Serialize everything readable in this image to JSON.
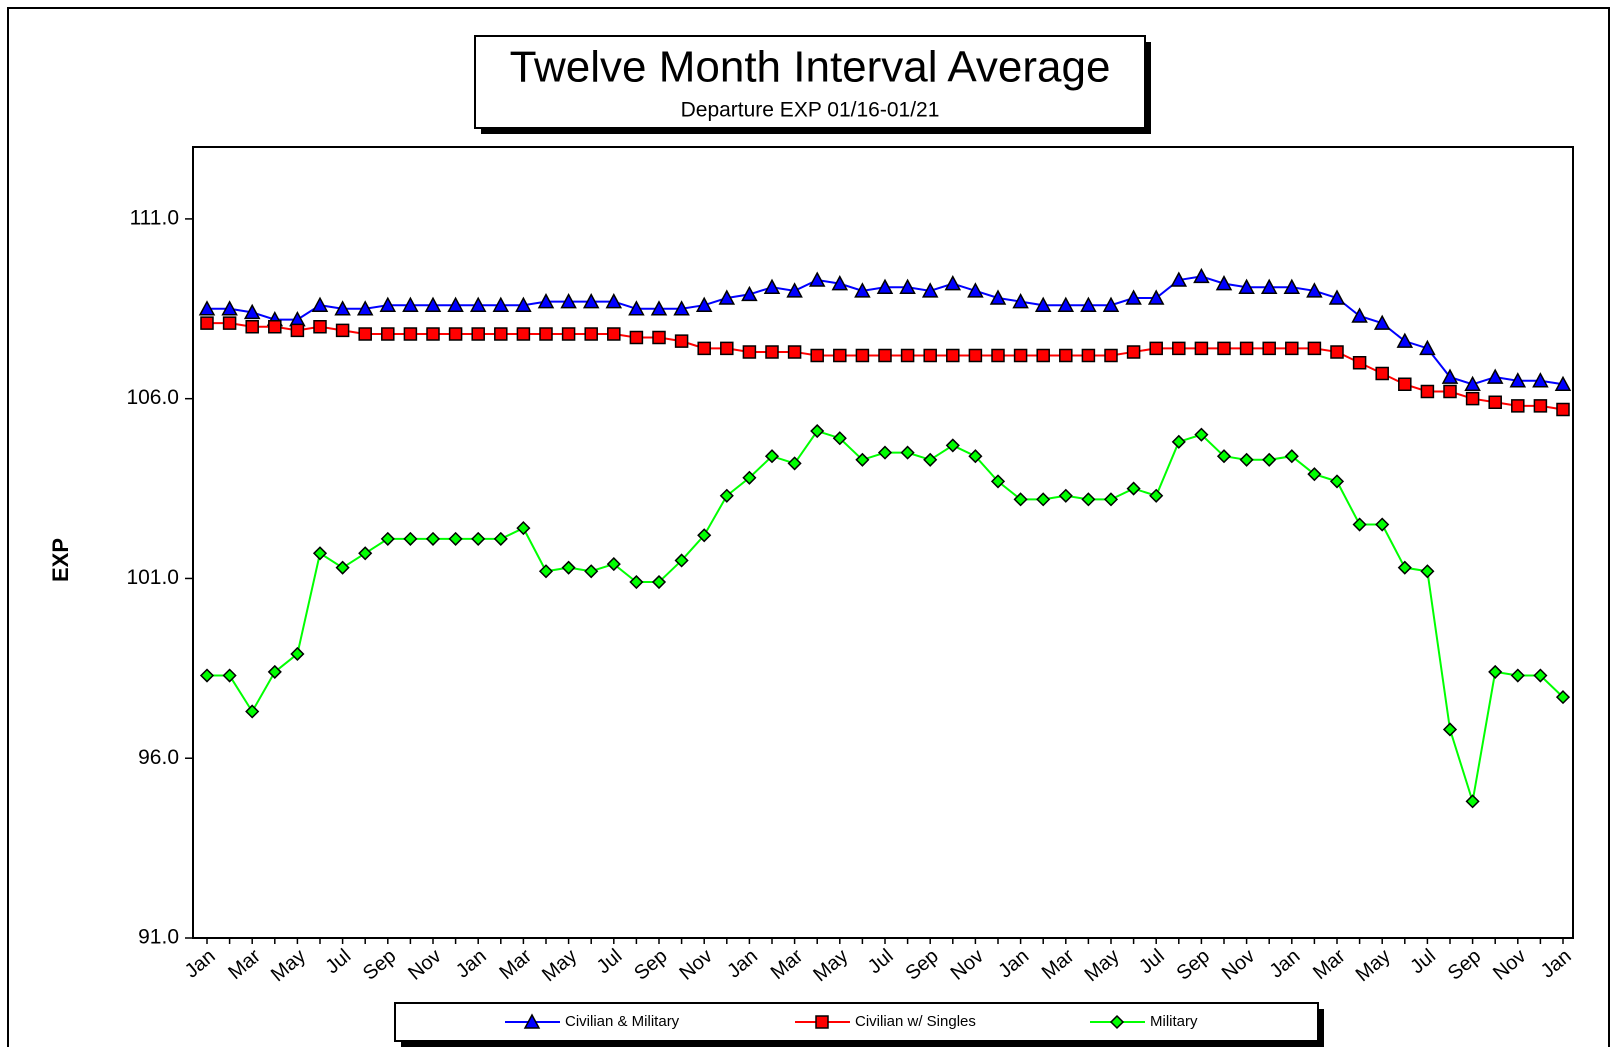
{
  "chart_data": {
    "type": "line",
    "title": "Twelve Month Interval Average",
    "subtitle": "Departure EXP 01/16-01/21",
    "y_label": "EXP",
    "categories": [
      "Jan",
      null,
      "Mar",
      null,
      "May",
      null,
      "Jul",
      null,
      "Sep",
      null,
      "Nov",
      null,
      "Jan",
      null,
      "Mar",
      null,
      "May",
      null,
      "Jul",
      null,
      "Sep",
      null,
      "Nov",
      null,
      "Jan",
      null,
      "Mar",
      null,
      "May",
      null,
      "Jul",
      null,
      "Sep",
      null,
      "Nov",
      null,
      "Jan",
      null,
      "Mar",
      null,
      "May",
      null,
      "Jul",
      null,
      "Sep",
      null,
      "Nov",
      null,
      "Jan",
      null,
      "Mar",
      null,
      "May",
      null,
      "Jul",
      null,
      "Sep",
      null,
      "Nov",
      null,
      "Jan"
    ],
    "series": [
      {
        "name": "Civilian & Military",
        "color": "#0000ff",
        "marker": "triangle",
        "values": [
          108.5,
          108.5,
          108.4,
          108.2,
          108.2,
          108.6,
          108.5,
          108.5,
          108.6,
          108.6,
          108.6,
          108.6,
          108.6,
          108.6,
          108.6,
          108.7,
          108.7,
          108.7,
          108.7,
          108.5,
          108.5,
          108.5,
          108.6,
          108.8,
          108.9,
          109.1,
          109.0,
          109.3,
          109.2,
          109.0,
          109.1,
          109.1,
          109.0,
          109.2,
          109.0,
          108.8,
          108.7,
          108.6,
          108.6,
          108.6,
          108.6,
          108.8,
          108.8,
          109.3,
          109.4,
          109.2,
          109.1,
          109.1,
          109.1,
          109.0,
          108.8,
          108.3,
          108.1,
          107.6,
          107.4,
          106.6,
          106.4,
          106.6,
          106.5,
          106.5,
          106.4
        ]
      },
      {
        "name": "Civilian w/ Singles",
        "color": "#ff0000",
        "marker": "square",
        "values": [
          108.1,
          108.1,
          108.0,
          108.0,
          107.9,
          108.0,
          107.9,
          107.8,
          107.8,
          107.8,
          107.8,
          107.8,
          107.8,
          107.8,
          107.8,
          107.8,
          107.8,
          107.8,
          107.8,
          107.7,
          107.7,
          107.6,
          107.4,
          107.4,
          107.3,
          107.3,
          107.3,
          107.2,
          107.2,
          107.2,
          107.2,
          107.2,
          107.2,
          107.2,
          107.2,
          107.2,
          107.2,
          107.2,
          107.2,
          107.2,
          107.2,
          107.3,
          107.4,
          107.4,
          107.4,
          107.4,
          107.4,
          107.4,
          107.4,
          107.4,
          107.3,
          107.0,
          106.7,
          106.4,
          106.2,
          106.2,
          106.0,
          105.9,
          105.8,
          105.8,
          105.7
        ]
      },
      {
        "name": "Military",
        "color": "#00ff00",
        "marker": "diamond",
        "values": [
          98.3,
          98.3,
          97.3,
          98.4,
          98.9,
          101.7,
          101.3,
          101.7,
          102.1,
          102.1,
          102.1,
          102.1,
          102.1,
          102.1,
          102.4,
          101.2,
          101.3,
          101.2,
          101.4,
          100.9,
          100.9,
          101.5,
          102.2,
          103.3,
          103.8,
          104.4,
          104.2,
          105.1,
          104.9,
          104.3,
          104.5,
          104.5,
          104.3,
          104.7,
          104.4,
          103.7,
          103.2,
          103.2,
          103.3,
          103.2,
          103.2,
          103.5,
          103.3,
          104.8,
          105.0,
          104.4,
          104.3,
          104.3,
          104.4,
          103.9,
          103.7,
          102.5,
          102.5,
          101.3,
          101.2,
          96.8,
          94.8,
          98.4,
          98.3,
          98.3,
          97.7
        ]
      }
    ],
    "ylim": [
      91,
      113
    ],
    "yticks": [
      {
        "value": 91,
        "label": "91.0"
      },
      {
        "value": 96,
        "label": "96.0"
      },
      {
        "value": 101,
        "label": "101.0"
      },
      {
        "value": 106,
        "label": "106.0"
      },
      {
        "value": 111,
        "label": "111.0"
      }
    ],
    "grid": false,
    "legend": "bottom"
  }
}
